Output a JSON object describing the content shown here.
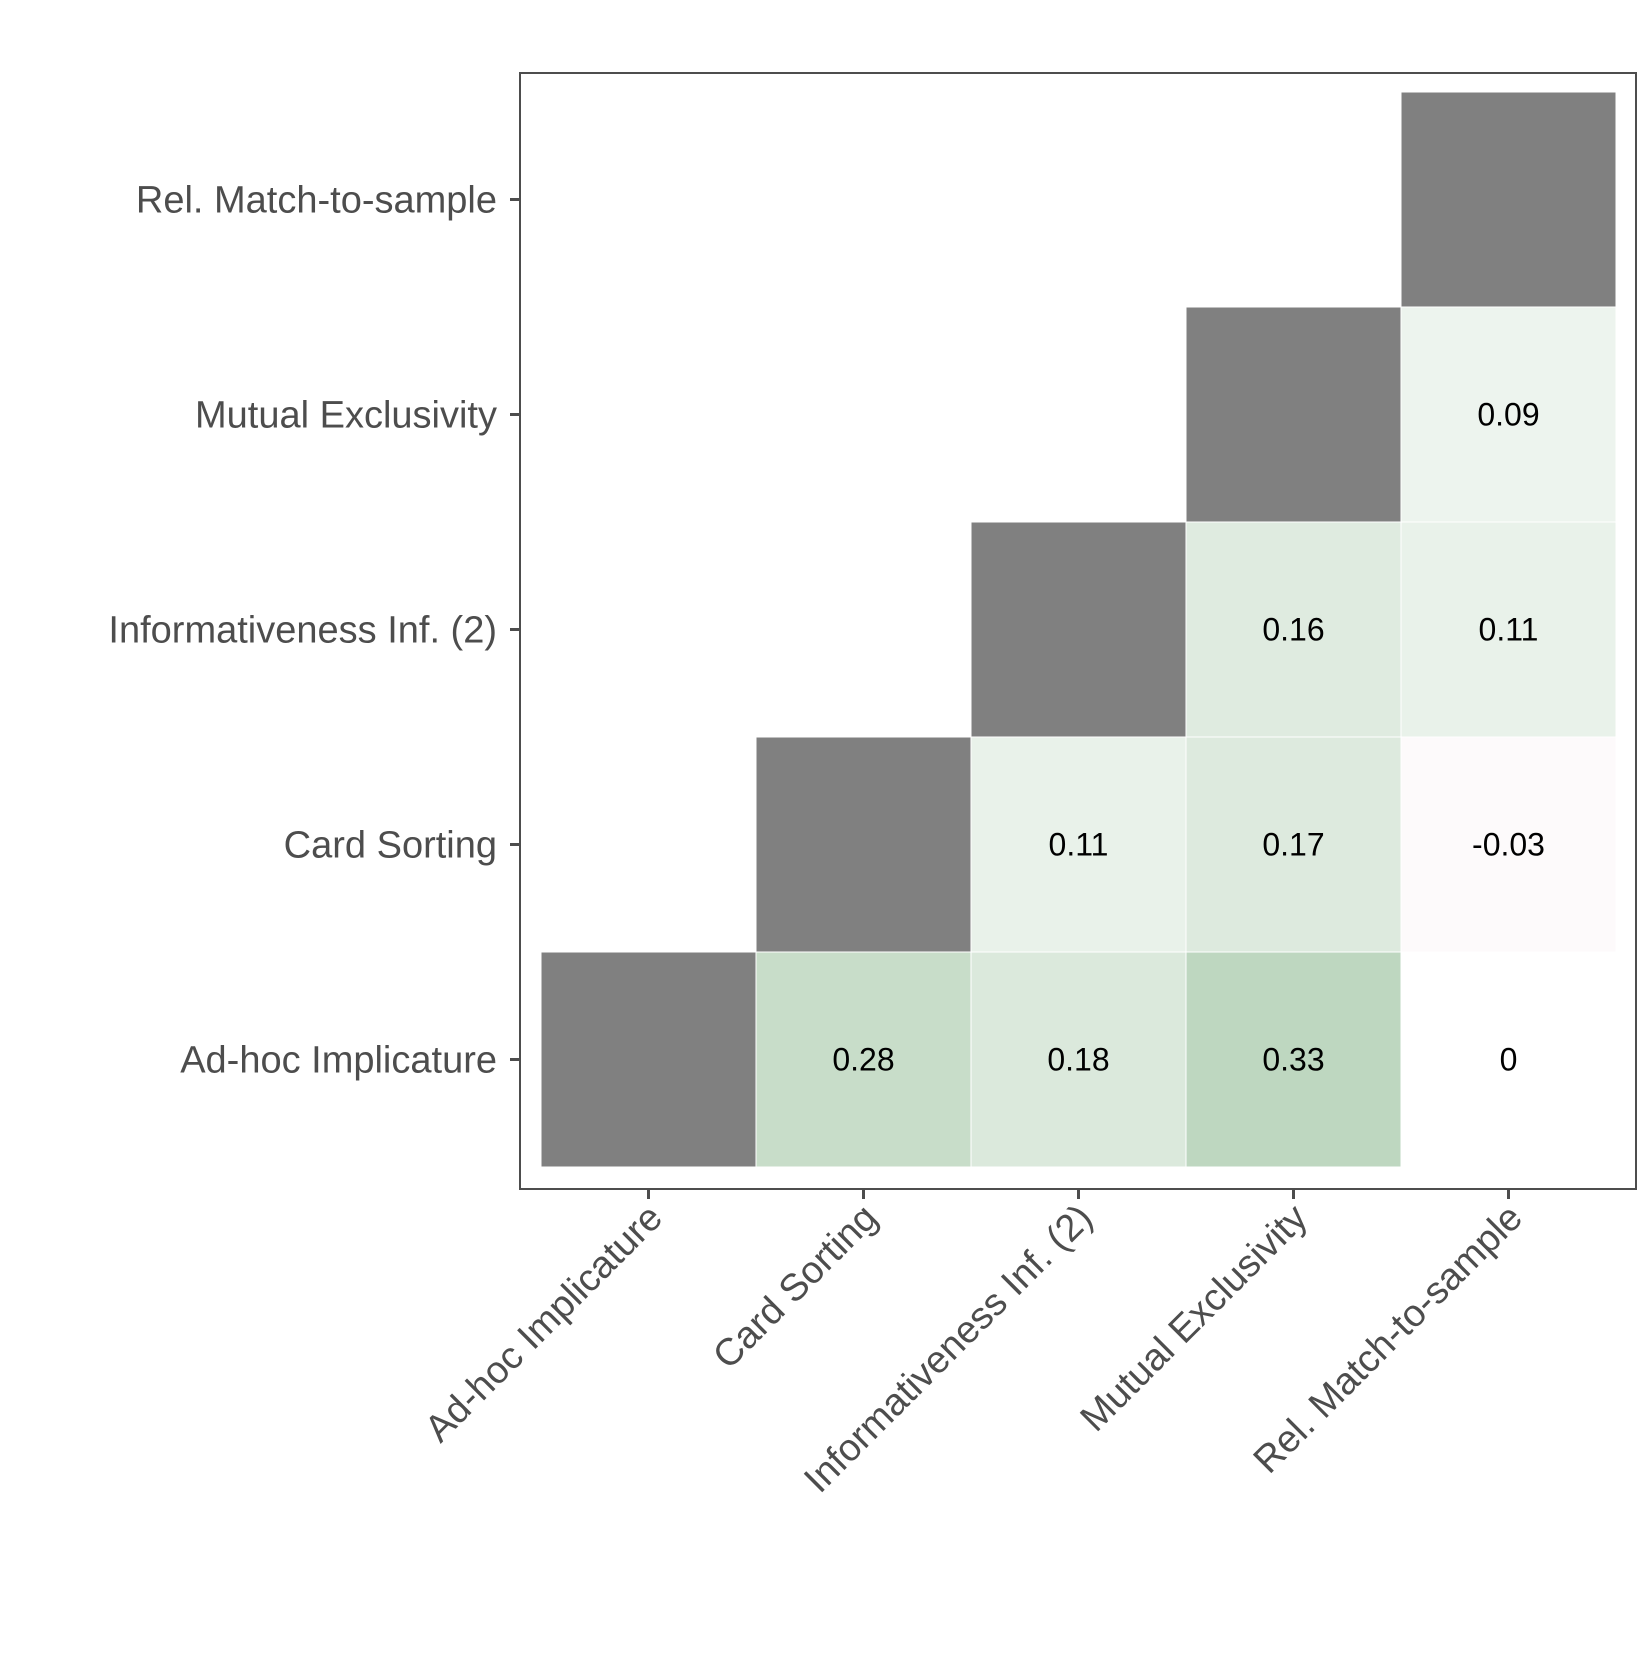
{
  "chart_data": {
    "type": "heatmap",
    "x_categories": [
      "Ad-hoc Implicature",
      "Card Sorting",
      "Informativeness Inf. (2)",
      "Mutual Exclusivity",
      "Rel. Match-to-sample"
    ],
    "y_categories": [
      "Ad-hoc Implicature",
      "Card Sorting",
      "Informativeness Inf. (2)",
      "Mutual Exclusivity",
      "Rel. Match-to-sample"
    ],
    "diagonal_color": "#808080",
    "colors": {
      "positive_max": "#9cc29f",
      "neutral": "#ffffff",
      "negative_max": "#d8a7bd",
      "border": "#4d4d4d",
      "tick_label": "#4d4d4d",
      "value_label": "#000000"
    },
    "color_scale_limit": 0.5,
    "cells": [
      {
        "x": "Card Sorting",
        "y": "Ad-hoc Implicature",
        "value": 0.28,
        "label": "0.28"
      },
      {
        "x": "Informativeness Inf. (2)",
        "y": "Ad-hoc Implicature",
        "value": 0.18,
        "label": "0.18"
      },
      {
        "x": "Mutual Exclusivity",
        "y": "Ad-hoc Implicature",
        "value": 0.33,
        "label": "0.33"
      },
      {
        "x": "Rel. Match-to-sample",
        "y": "Ad-hoc Implicature",
        "value": 0,
        "label": "0"
      },
      {
        "x": "Informativeness Inf. (2)",
        "y": "Card Sorting",
        "value": 0.11,
        "label": "0.11"
      },
      {
        "x": "Mutual Exclusivity",
        "y": "Card Sorting",
        "value": 0.17,
        "label": "0.17"
      },
      {
        "x": "Rel. Match-to-sample",
        "y": "Card Sorting",
        "value": -0.03,
        "label": "-0.03"
      },
      {
        "x": "Mutual Exclusivity",
        "y": "Informativeness Inf. (2)",
        "value": 0.16,
        "label": "0.16"
      },
      {
        "x": "Rel. Match-to-sample",
        "y": "Informativeness Inf. (2)",
        "value": 0.11,
        "label": "0.11"
      },
      {
        "x": "Rel. Match-to-sample",
        "y": "Mutual Exclusivity",
        "value": 0.09,
        "label": "0.09"
      }
    ],
    "grid": false,
    "legend": "none"
  }
}
